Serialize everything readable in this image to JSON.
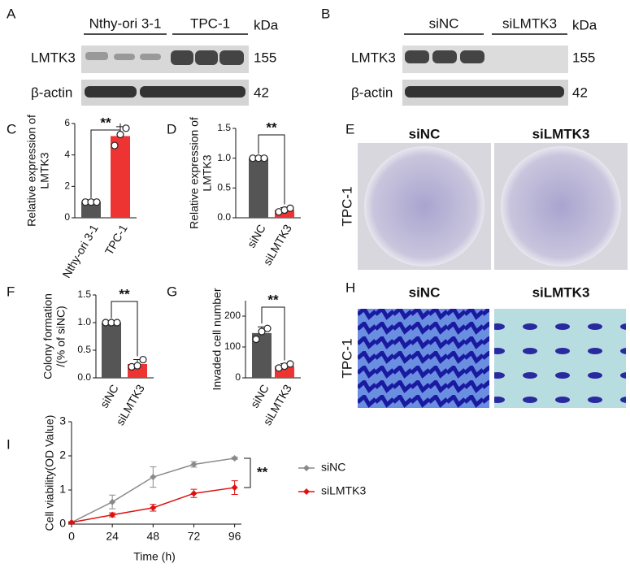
{
  "panels": {
    "A": {
      "letter": "A",
      "groups": [
        "Nthy-ori 3-1",
        "TPC-1"
      ],
      "unit": "kDa",
      "rows": [
        {
          "label": "LMTK3",
          "kda": 155
        },
        {
          "label": "β-actin",
          "kda": 42
        }
      ]
    },
    "B": {
      "letter": "B",
      "groups": [
        "siNC",
        "siLMTK3"
      ],
      "unit": "kDa",
      "rows": [
        {
          "label": "LMTK3",
          "kda": 155
        },
        {
          "label": "β-actin",
          "kda": 42
        }
      ]
    },
    "E": {
      "letter": "E",
      "columns": [
        "siNC",
        "siLMTK3"
      ],
      "row_label": "TPC-1"
    },
    "H": {
      "letter": "H",
      "columns": [
        "siNC",
        "siLMTK3"
      ],
      "row_label": "TPC-1"
    }
  },
  "chart_data": [
    {
      "type": "bar",
      "letter": "C",
      "y_label": [
        "Relative expression of",
        "LMTK3"
      ],
      "categories": [
        "Nthy-ori 3-1",
        "TPC-1"
      ],
      "values": [
        1,
        5.2
      ],
      "errors": [
        0.05,
        0.6
      ],
      "points": [
        [
          1,
          1,
          1
        ],
        [
          4.6,
          5.3,
          5.7
        ]
      ],
      "colors": [
        "#555555",
        "#ee3333"
      ],
      "ylim": [
        0,
        6
      ],
      "yticks": [
        0,
        2,
        4,
        6
      ],
      "annotation": "**"
    },
    {
      "type": "bar",
      "letter": "D",
      "y_label": [
        "Relative expression of",
        "LMTK3"
      ],
      "categories": [
        "siNC",
        "siLMTK3"
      ],
      "values": [
        1,
        0.13
      ],
      "errors": [
        0.02,
        0.04
      ],
      "points": [
        [
          1,
          1,
          1
        ],
        [
          0.1,
          0.13,
          0.16
        ]
      ],
      "colors": [
        "#555555",
        "#ee3333"
      ],
      "ylim": [
        0,
        1.5
      ],
      "yticks": [
        {
          "value": 0,
          "label": "0.0"
        },
        {
          "value": 0.5,
          "label": "0.5"
        },
        {
          "value": 1,
          "label": "1.0"
        },
        {
          "value": 1.5,
          "label": "1.5"
        }
      ],
      "annotation": "**"
    },
    {
      "type": "bar",
      "letter": "F",
      "y_label": [
        "Colony formation",
        "/(% of siNC)"
      ],
      "categories": [
        "siNC",
        "siLMTK3"
      ],
      "values": [
        1,
        0.25
      ],
      "errors": [
        0.02,
        0.08
      ],
      "points": [
        [
          1,
          1,
          1
        ],
        [
          0.2,
          0.22,
          0.33
        ]
      ],
      "colors": [
        "#555555",
        "#ee3333"
      ],
      "ylim": [
        0,
        1.5
      ],
      "yticks": [
        {
          "value": 0,
          "label": "0.0"
        },
        {
          "value": 0.5,
          "label": "0.5"
        },
        {
          "value": 1,
          "label": "1.0"
        },
        {
          "value": 1.5,
          "label": "1.5"
        }
      ],
      "annotation": "**"
    },
    {
      "type": "bar",
      "letter": "G",
      "y_label": [
        "Invaded cell number"
      ],
      "categories": [
        "siNC",
        "siLMTK3"
      ],
      "values": [
        145,
        38
      ],
      "errors": [
        20,
        8
      ],
      "points": [
        [
          125,
          150,
          160
        ],
        [
          32,
          38,
          45
        ]
      ],
      "colors": [
        "#555555",
        "#ee3333"
      ],
      "ylim": [
        0,
        250
      ],
      "yticks": [
        0,
        100,
        200
      ],
      "annotation": "**"
    },
    {
      "type": "line",
      "letter": "I",
      "x_label": "Time (h)",
      "y_label": "Cell viability(OD Value)",
      "x": [
        0,
        24,
        48,
        72,
        96
      ],
      "xlim": [
        0,
        100
      ],
      "xticks": [
        0,
        24,
        48,
        72,
        96
      ],
      "ylim": [
        0,
        3
      ],
      "yticks": [
        0,
        1,
        2,
        3
      ],
      "annotation": "**",
      "series": [
        {
          "name": "siNC",
          "color": "#8a8a8a",
          "values": [
            0.05,
            0.65,
            1.38,
            1.75,
            1.93
          ],
          "errors": [
            0.02,
            0.2,
            0.3,
            0.08,
            0.03
          ]
        },
        {
          "name": "siLMTK3",
          "color": "#dd1111",
          "values": [
            0.05,
            0.27,
            0.48,
            0.9,
            1.07
          ],
          "errors": [
            0.02,
            0.06,
            0.1,
            0.12,
            0.2
          ]
        }
      ]
    }
  ]
}
